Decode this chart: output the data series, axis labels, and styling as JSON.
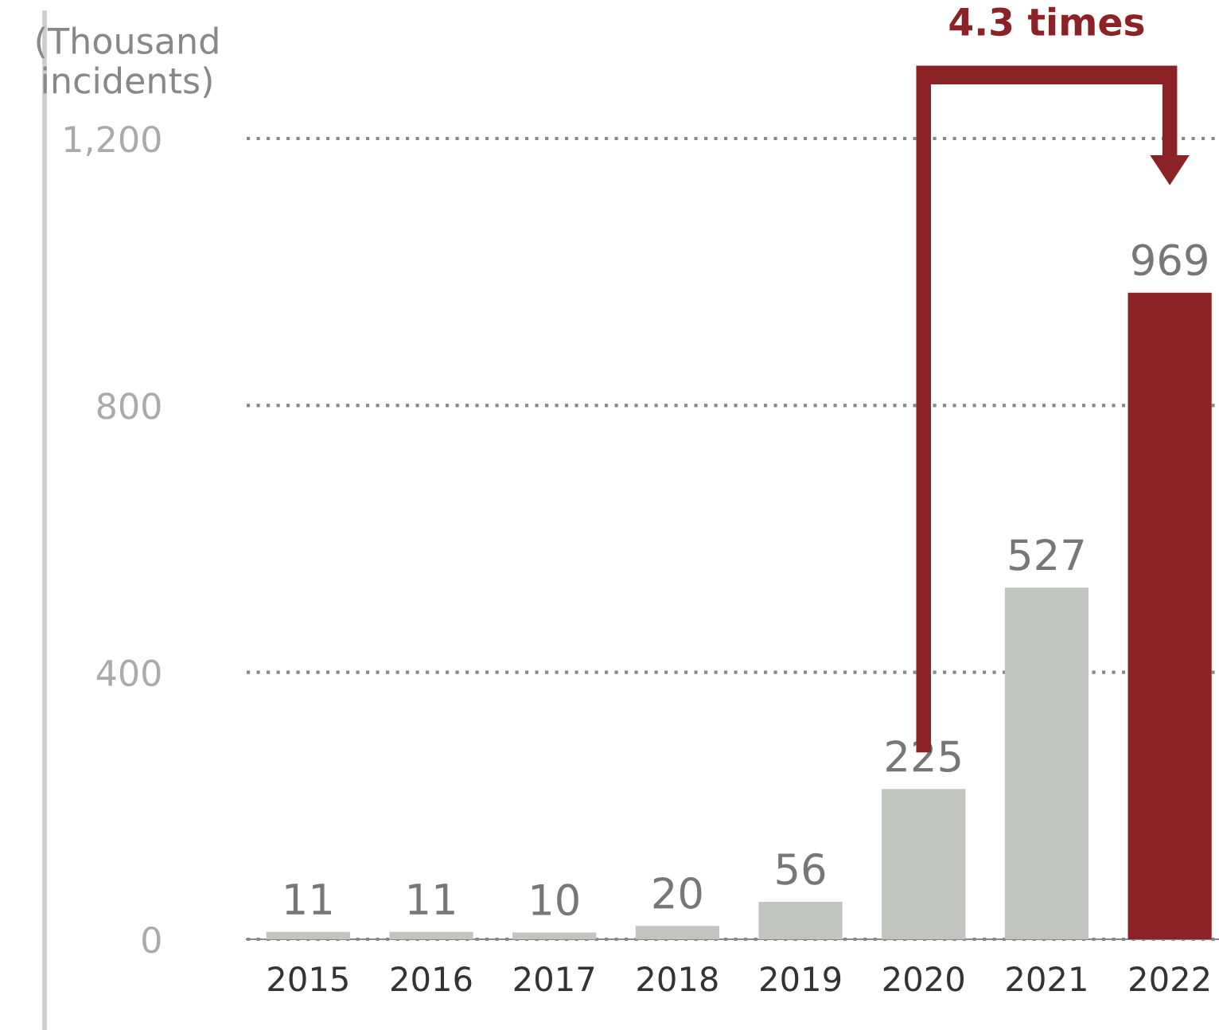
{
  "chart_data": {
    "type": "bar",
    "ylabel": "(Thousand incidents)",
    "categories": [
      "2015",
      "2016",
      "2017",
      "2018",
      "2019",
      "2020",
      "2021",
      "2022"
    ],
    "values": [
      11,
      11,
      10,
      20,
      56,
      225,
      527,
      969
    ],
    "colors": [
      "#c1c4bf",
      "#c1c4bf",
      "#c1c4bf",
      "#c1c4bf",
      "#c1c4bf",
      "#c1c4bf",
      "#c1c4bf",
      "#8b2326"
    ],
    "ylim": [
      0,
      1200
    ],
    "yticks": [
      0,
      400,
      800,
      {
        "value": 1200,
        "label": "1,200"
      }
    ],
    "grid": "y",
    "data_labels": true,
    "annotations": [
      "4.3 times"
    ]
  }
}
